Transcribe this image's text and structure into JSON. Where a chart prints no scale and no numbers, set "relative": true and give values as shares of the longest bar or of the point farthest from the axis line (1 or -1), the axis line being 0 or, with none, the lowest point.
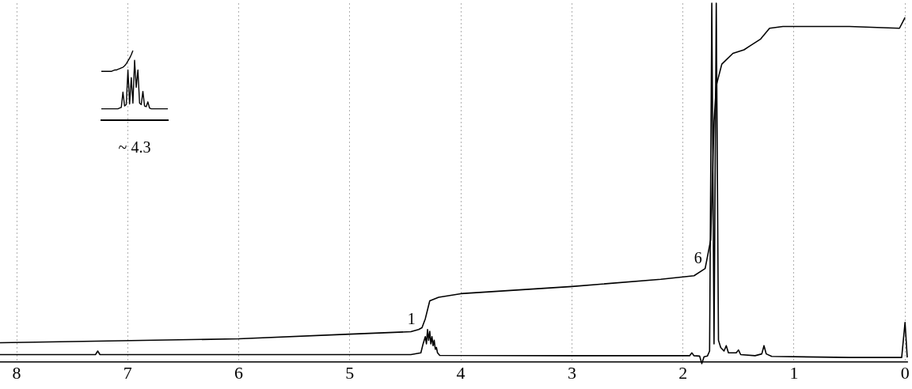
{
  "chart_data": [
    {
      "type": "line",
      "relative": true,
      "xlim": [
        8.15,
        -0.02
      ],
      "xticks": [
        8,
        7,
        6,
        5,
        4,
        3,
        2,
        1,
        0
      ],
      "grid": "x",
      "marker": "none",
      "annotations": [
        {
          "text": "1",
          "x": 4.38,
          "y": 0.09
        },
        {
          "text": "6",
          "x": 1.8,
          "y": 0.26
        }
      ],
      "series": [
        {
          "color": "#000000",
          "x": [
            8.15,
            7.4,
            7.29,
            7.27,
            7.25,
            6.0,
            5.0,
            4.45,
            4.36,
            4.34,
            4.32,
            4.31,
            4.3,
            4.29,
            4.28,
            4.27,
            4.26,
            4.25,
            4.24,
            4.23,
            4.22,
            4.21,
            4.19,
            3.0,
            2.0,
            1.94,
            1.92,
            1.9,
            1.85,
            1.83,
            1.81,
            1.78,
            1.76,
            1.74,
            1.72,
            1.7,
            1.68,
            1.66,
            1.63,
            1.61,
            1.59,
            1.52,
            1.5,
            1.48,
            1.35,
            1.29,
            1.27,
            1.25,
            1.2,
            0.5,
            0.03,
            0.0,
            -0.02
          ],
          "values": [
            0.02,
            0.02,
            0.02,
            0.03,
            0.02,
            0.02,
            0.02,
            0.02,
            0.025,
            0.05,
            0.07,
            0.05,
            0.09,
            0.06,
            0.085,
            0.05,
            0.07,
            0.045,
            0.06,
            0.035,
            0.04,
            0.025,
            0.018,
            0.017,
            0.017,
            0.017,
            0.025,
            0.017,
            0.016,
            -0.005,
            0.014,
            0.016,
            0.03,
            1,
            0.05,
            1,
            0.06,
            0.04,
            0.03,
            0.045,
            0.025,
            0.025,
            0.033,
            0.02,
            0.017,
            0.022,
            0.045,
            0.022,
            0.015,
            0.012,
            0.012,
            0.11,
            0.012
          ]
        },
        {
          "color": "#000000",
          "x": [
            8.15,
            6.0,
            5.0,
            4.45,
            4.38,
            4.35,
            4.32,
            4.28,
            4.2,
            4.0,
            3.0,
            2.2,
            1.9,
            1.8,
            1.75,
            1.72,
            1.7,
            1.65,
            1.55,
            1.45,
            1.4,
            1.3,
            1.22,
            1.1,
            0.5,
            0.05,
            0.0
          ],
          "values": [
            0.053,
            0.064,
            0.077,
            0.084,
            0.09,
            0.095,
            0.12,
            0.17,
            0.18,
            0.19,
            0.21,
            0.23,
            0.24,
            0.26,
            0.34,
            0.67,
            0.77,
            0.83,
            0.86,
            0.87,
            0.88,
            0.9,
            0.93,
            0.935,
            0.935,
            0.93,
            0.96
          ]
        }
      ]
    },
    {
      "type": "line",
      "relative": true,
      "xlabel": "~ 4.3",
      "marker": "none",
      "categories": [
        null,
        null,
        null,
        null,
        null,
        null,
        null,
        null,
        null,
        null,
        null,
        null,
        null,
        null,
        null,
        null,
        null,
        null,
        null,
        null,
        null,
        null,
        null,
        null,
        null,
        null,
        null,
        null,
        null,
        null,
        null,
        null,
        null,
        null,
        null,
        null,
        null,
        null,
        null,
        null,
        null
      ],
      "series": [
        {
          "color": "#000000",
          "values": [
            0.16,
            0.16,
            0.16,
            0.16,
            0.16,
            0.16,
            0.16,
            0.16,
            0.16,
            0.16,
            0.16,
            0.17,
            0.18,
            0.4,
            0.2,
            0.22,
            0.72,
            0.23,
            0.61,
            0.24,
            0.86,
            0.47,
            0.72,
            0.24,
            0.22,
            0.41,
            0.2,
            0.19,
            0.26,
            0.17,
            0.16,
            0.16,
            0.16,
            0.16,
            0.16,
            0.16,
            0.16,
            0.16,
            0.16,
            0.16,
            0.16
          ]
        },
        {
          "color": "#000000",
          "values": [
            0.7,
            0.7,
            0.7,
            0.7,
            0.7,
            0.7,
            0.7,
            0.71,
            0.72,
            0.72,
            0.73,
            0.74,
            0.75,
            0.76,
            0.78,
            0.81,
            0.85,
            0.89,
            0.94,
            1,
            null,
            null,
            null,
            null,
            null,
            null,
            null,
            null,
            null,
            null,
            null,
            null,
            null,
            null,
            null,
            null,
            null,
            null,
            null,
            null,
            null
          ]
        }
      ]
    }
  ]
}
